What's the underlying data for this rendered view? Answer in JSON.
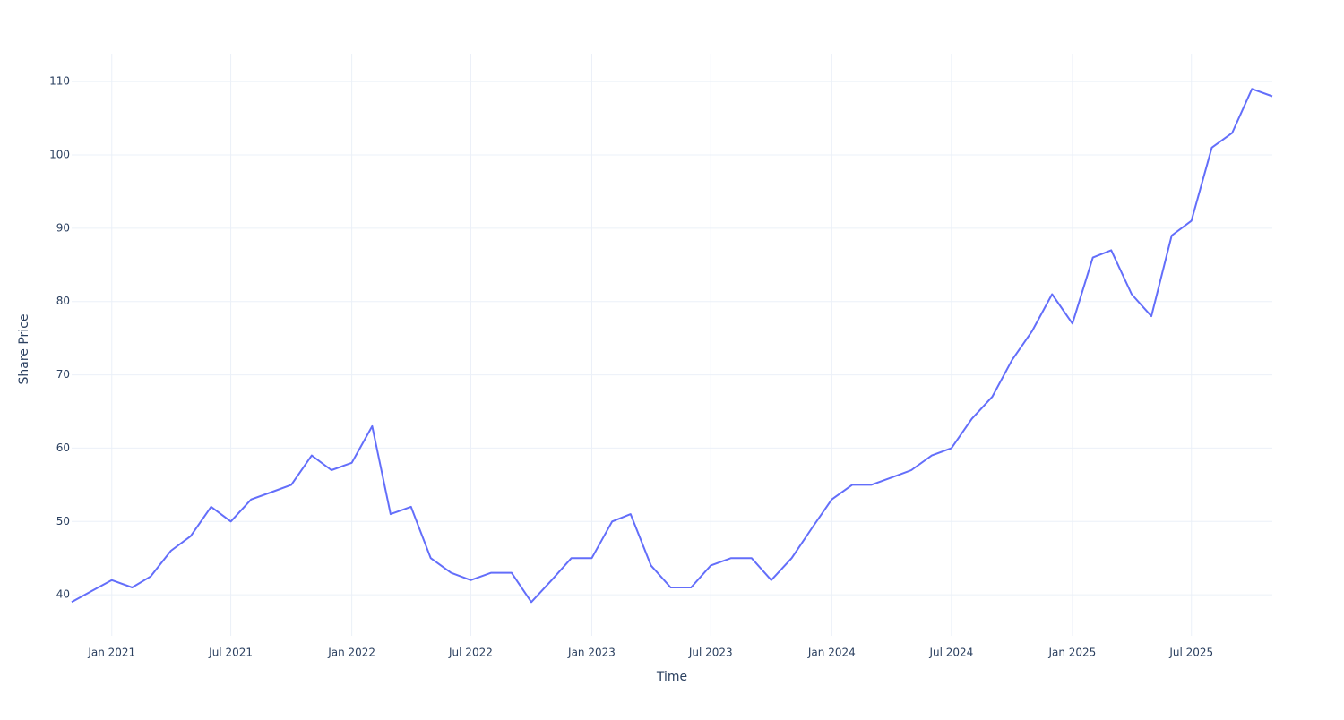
{
  "chart_data": {
    "type": "line",
    "x_label": "Time",
    "y_label": "Share Price",
    "x": [
      "2020-11",
      "2020-12",
      "2021-01",
      "2021-02",
      "2021-03",
      "2021-04",
      "2021-05",
      "2021-06",
      "2021-07",
      "2021-08",
      "2021-09",
      "2021-10",
      "2021-11",
      "2021-12",
      "2022-01",
      "2022-02",
      "2022-03",
      "2022-04",
      "2022-05",
      "2022-06",
      "2022-07",
      "2022-08",
      "2022-09",
      "2022-10",
      "2022-11",
      "2022-12",
      "2023-01",
      "2023-02",
      "2023-03",
      "2023-04",
      "2023-05",
      "2023-06",
      "2023-07",
      "2023-08",
      "2023-09",
      "2023-10",
      "2023-11",
      "2023-12",
      "2024-01",
      "2024-02",
      "2024-03",
      "2024-04",
      "2024-05",
      "2024-06",
      "2024-07",
      "2024-08",
      "2024-09",
      "2024-10",
      "2024-11",
      "2024-12",
      "2025-01",
      "2025-02",
      "2025-03",
      "2025-04",
      "2025-05",
      "2025-06",
      "2025-07",
      "2025-08",
      "2025-09",
      "2025-10",
      "2025-11"
    ],
    "values": [
      39,
      40.5,
      42,
      41,
      42.5,
      46,
      48,
      52,
      50,
      53,
      54,
      55,
      59,
      57,
      58,
      63,
      51,
      52,
      45,
      43,
      42,
      43,
      43,
      39,
      42,
      45,
      45,
      50,
      51,
      44,
      41,
      41,
      44,
      45,
      45,
      42,
      45,
      49,
      53,
      55,
      55,
      56,
      57,
      59,
      60,
      64,
      67,
      72,
      76,
      81,
      77,
      86,
      87,
      81,
      78,
      89,
      91,
      101,
      103,
      109,
      108
    ],
    "color": "#636efa",
    "xlim": [
      "2020-11",
      "2025-11"
    ],
    "xticks": [
      {
        "value": "2021-01",
        "label": "Jan 2021"
      },
      {
        "value": "2021-07",
        "label": "Jul 2021"
      },
      {
        "value": "2022-01",
        "label": "Jan 2022"
      },
      {
        "value": "2022-07",
        "label": "Jul 2022"
      },
      {
        "value": "2023-01",
        "label": "Jan 2023"
      },
      {
        "value": "2023-07",
        "label": "Jul 2023"
      },
      {
        "value": "2024-01",
        "label": "Jan 2024"
      },
      {
        "value": "2024-07",
        "label": "Jul 2024"
      },
      {
        "value": "2025-01",
        "label": "Jan 2025"
      },
      {
        "value": "2025-07",
        "label": "Jul 2025"
      }
    ],
    "ylim": [
      34.4,
      113.8
    ],
    "yticks": [
      40,
      50,
      60,
      70,
      80,
      90,
      100,
      110
    ],
    "grid": true
  }
}
